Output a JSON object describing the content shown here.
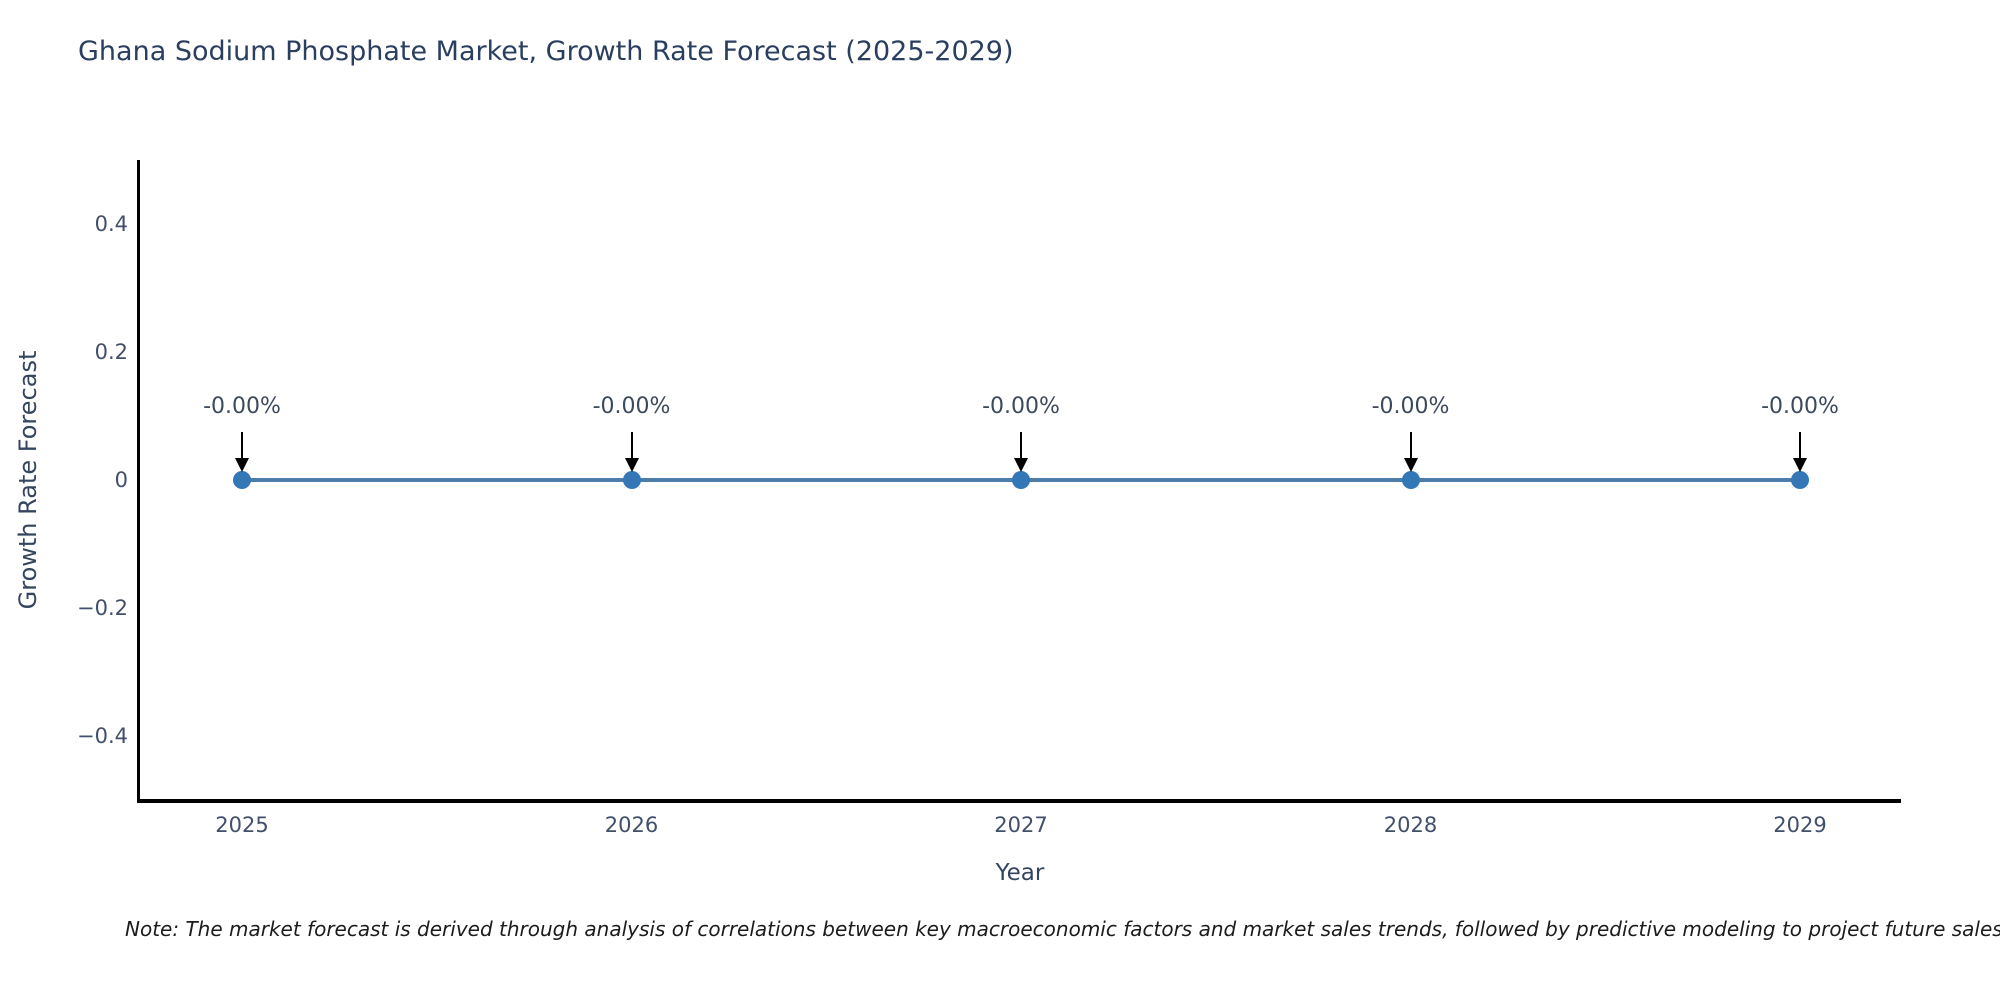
{
  "note": "Note: The market forecast is derived through analysis of correlations between key macroeconomic factors and market sales trends, followed by predictive modeling to project future sales",
  "chart_data": {
    "type": "line",
    "title": "Ghana Sodium Phosphate Market, Growth Rate Forecast (2025-2029)",
    "xlabel": "Year",
    "ylabel": "Growth Rate Forecast",
    "x": [
      2025,
      2026,
      2027,
      2028,
      2029
    ],
    "series": [
      {
        "name": "Growth Rate Forecast",
        "values": [
          0,
          0,
          0,
          0,
          0
        ]
      }
    ],
    "point_labels": [
      "-0.00%",
      "-0.00%",
      "-0.00%",
      "-0.00%",
      "-0.00%"
    ],
    "xticks": [
      "2025",
      "2026",
      "2027",
      "2028",
      "2029"
    ],
    "yticks": {
      "labels": [
        "0.4",
        "0.2",
        "0",
        "−0.2",
        "−0.4"
      ],
      "values": [
        0.4,
        0.2,
        0,
        -0.2,
        -0.4
      ]
    },
    "ylim": [
      -0.5,
      0.5
    ],
    "grid": false,
    "legend": "none",
    "colors": {
      "line": "#4d7ea9",
      "marker": "#3377b6",
      "axis": "#000000",
      "arrow": "#000000",
      "title_text": "#2a3f5f",
      "tick_text": "#40506a",
      "annotation_text": "#3d4a5c"
    }
  }
}
